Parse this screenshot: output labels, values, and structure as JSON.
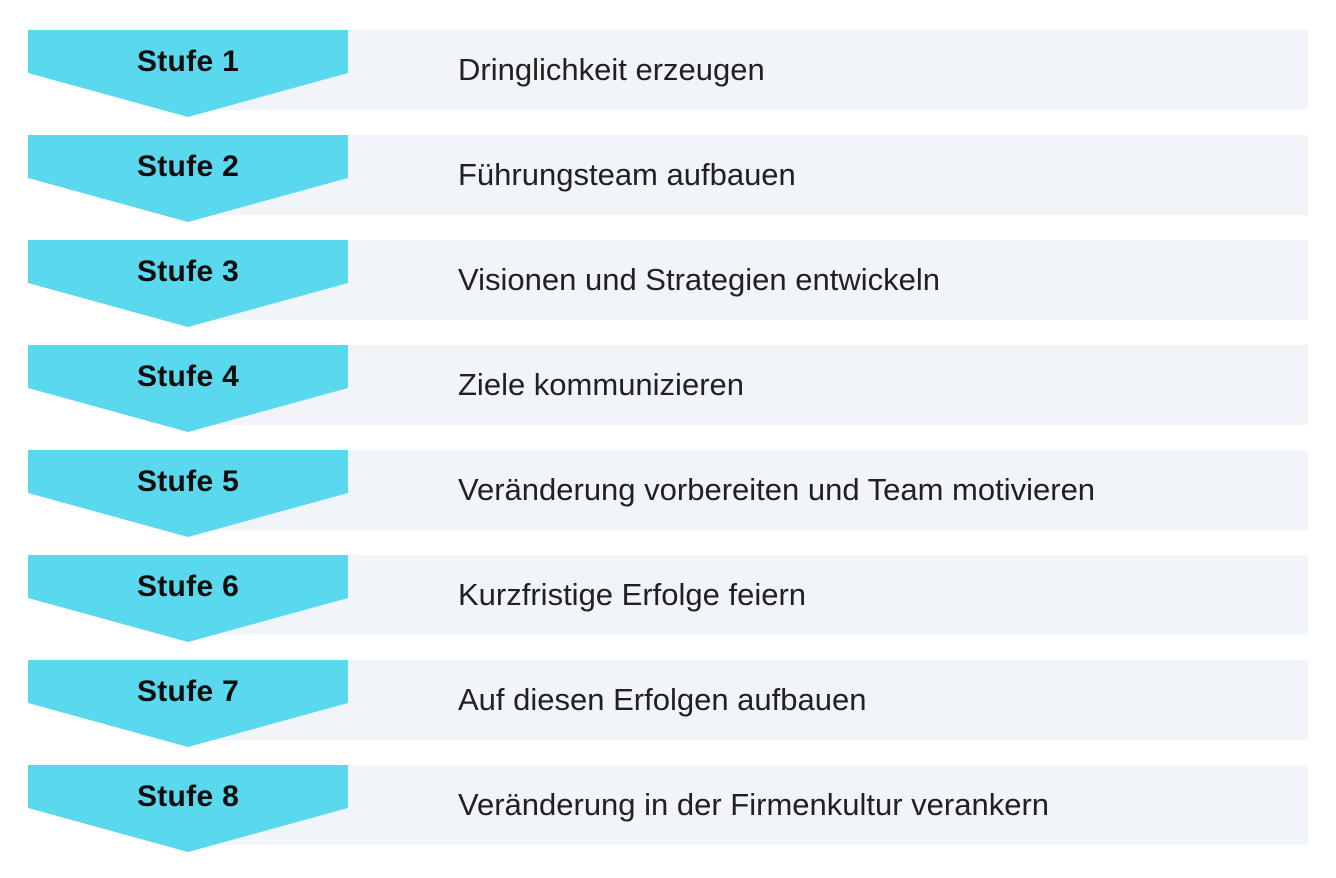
{
  "diagram_name": "change-management-stufen",
  "colors": {
    "arrow_fill": "#5ad8ee",
    "row_background": "#f1f5f9",
    "label_text": "#0d0d0d",
    "description_text": "#212121"
  },
  "steps": [
    {
      "label": "Stufe 1",
      "text": "Dringlichkeit erzeugen"
    },
    {
      "label": "Stufe 2",
      "text": "Führungsteam aufbauen"
    },
    {
      "label": "Stufe 3",
      "text": "Visionen und Strategien entwickeln"
    },
    {
      "label": "Stufe 4",
      "text": "Ziele kommunizieren"
    },
    {
      "label": "Stufe 5",
      "text": "Veränderung vorbereiten und Team motivieren"
    },
    {
      "label": "Stufe 6",
      "text": "Kurzfristige Erfolge feiern"
    },
    {
      "label": "Stufe 7",
      "text": "Auf diesen Erfolgen aufbauen"
    },
    {
      "label": "Stufe 8",
      "text": "Veränderung in der Firmenkultur verankern"
    }
  ]
}
